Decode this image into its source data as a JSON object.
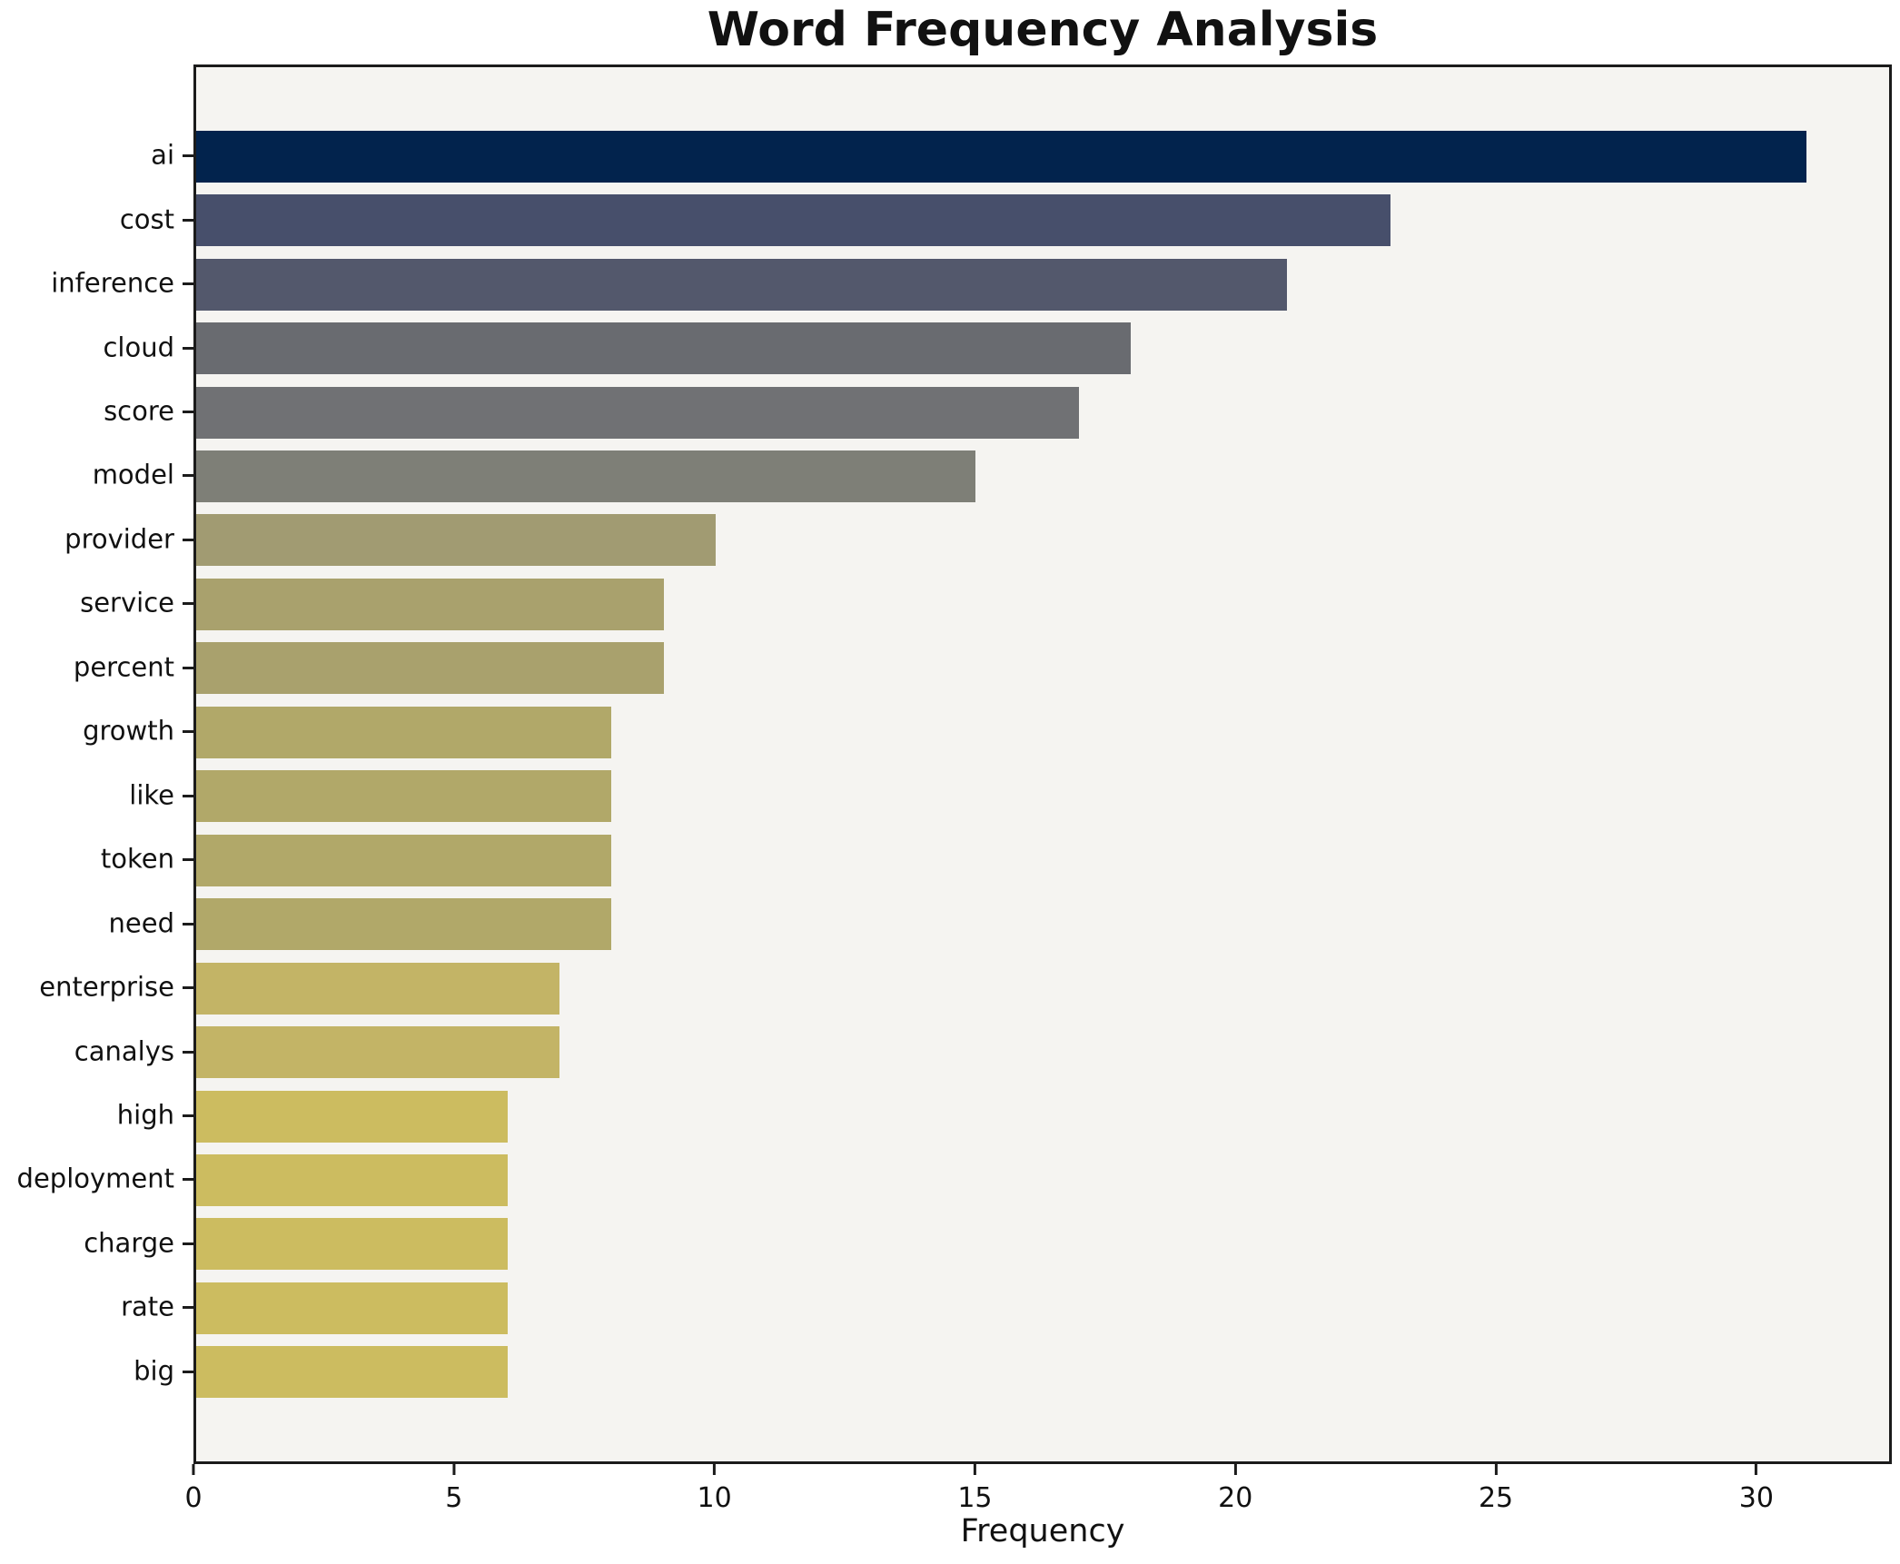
{
  "chart_data": {
    "type": "bar",
    "orientation": "horizontal",
    "title": "Word Frequency Analysis",
    "xlabel": "Frequency",
    "ylabel": "",
    "grid": false,
    "legend_position": "none",
    "xlim": [
      0,
      32.6
    ],
    "x_ticks": [
      0,
      5,
      10,
      15,
      20,
      25,
      30
    ],
    "categories": [
      "ai",
      "cost",
      "inference",
      "cloud",
      "score",
      "model",
      "provider",
      "service",
      "percent",
      "growth",
      "like",
      "token",
      "need",
      "enterprise",
      "canalys",
      "high",
      "deployment",
      "charge",
      "rate",
      "big"
    ],
    "values": [
      31,
      23,
      21,
      18,
      17,
      15,
      10,
      9,
      9,
      8,
      8,
      8,
      8,
      7,
      7,
      6,
      6,
      6,
      6,
      6
    ],
    "bar_colors": [
      "#02234d",
      "#474f6b",
      "#53586c",
      "#696b70",
      "#707174",
      "#7e7f77",
      "#a19b72",
      "#a9a16d",
      "#a9a16d",
      "#b1a869",
      "#b1a869",
      "#b1a869",
      "#b1a869",
      "#c3b466",
      "#c3b466",
      "#ccbc60",
      "#ccbc60",
      "#ccbc60",
      "#ccbc60",
      "#ccbc60"
    ]
  },
  "styles": {
    "figure_background": "#ffffff",
    "plot_background": "#f5f4f1",
    "spine_color": "#1b1b1b",
    "text_color": "#111111"
  }
}
